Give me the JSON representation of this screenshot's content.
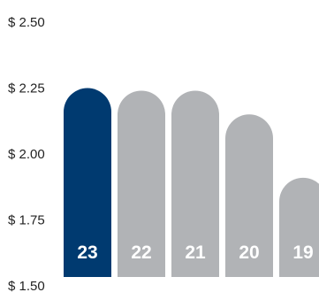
{
  "chart_data": {
    "type": "bar",
    "title": "",
    "xlabel": "",
    "ylabel": "",
    "categories": [
      "23",
      "22",
      "21",
      "20",
      "19"
    ],
    "values": [
      2.25,
      2.24,
      2.24,
      2.15,
      1.91
    ],
    "ylim": [
      1.5,
      2.5
    ],
    "yticks": [
      "$ 2.50",
      "$ 2.25",
      "$ 2.00",
      "$ 1.75",
      "$ 1.50"
    ],
    "ytick_values": [
      2.5,
      2.25,
      2.0,
      1.75,
      1.5
    ],
    "grid": false,
    "colors": {
      "highlight": "#003a70",
      "default": "#b1b3b6",
      "label": "#ffffff",
      "tick": "#222222"
    },
    "highlight_index": 0
  }
}
